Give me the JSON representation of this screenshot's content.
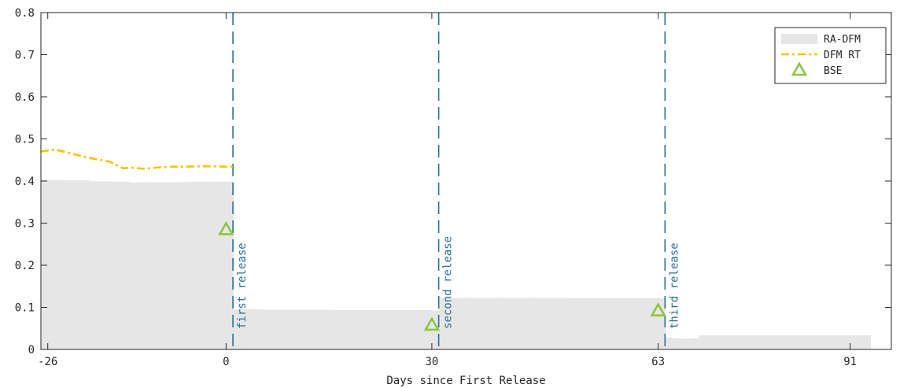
{
  "chart_data": {
    "type": "area",
    "title": "",
    "xlabel": "Days since First Release",
    "ylabel": "",
    "xlim": [
      -27,
      97
    ],
    "ylim": [
      0,
      0.8
    ],
    "xticks": [
      -26,
      0,
      30,
      63,
      91
    ],
    "xtick_labels": [
      "-26",
      "0",
      "30",
      "63",
      "91"
    ],
    "yticks": [
      0,
      0.1,
      0.2,
      0.3,
      0.4,
      0.5,
      0.6,
      0.7,
      0.8
    ],
    "ytick_labels": [
      "0",
      "0.1",
      "0.2",
      "0.3",
      "0.4",
      "0.5",
      "0.6",
      "0.7",
      "0.8"
    ],
    "grid": false,
    "legend_position": "top-right",
    "series": [
      {
        "name": "RA-DFM",
        "kind": "bars",
        "color": "#e6e6e6",
        "x": [
          -27,
          -24,
          -20,
          -17,
          -14,
          -11,
          -8,
          -5,
          -2,
          1,
          1.01,
          5,
          10,
          15,
          20,
          25,
          30,
          31,
          31.01,
          35,
          40,
          45,
          50,
          55,
          60,
          64,
          64.01,
          65,
          66,
          68,
          69,
          75,
          80,
          85,
          90,
          93
        ],
        "y": [
          0.402,
          0.401,
          0.399,
          0.398,
          0.396,
          0.396,
          0.397,
          0.398,
          0.398,
          0.398,
          0.095,
          0.094,
          0.094,
          0.093,
          0.093,
          0.093,
          0.092,
          0.092,
          0.122,
          0.122,
          0.122,
          0.122,
          0.121,
          0.121,
          0.121,
          0.121,
          0.028,
          0.026,
          0.025,
          0.026,
          0.033,
          0.033,
          0.033,
          0.033,
          0.033,
          0.033
        ]
      },
      {
        "name": "DFM RT",
        "kind": "line",
        "color": "#f5c400",
        "x": [
          -27,
          -25,
          -23,
          -21,
          -19,
          -17,
          -15,
          -14,
          -12,
          -10,
          -8,
          -6,
          -4,
          -2,
          0,
          1
        ],
        "y": [
          0.47,
          0.475,
          0.467,
          0.459,
          0.452,
          0.446,
          0.43,
          0.432,
          0.429,
          0.432,
          0.434,
          0.434,
          0.435,
          0.435,
          0.434,
          0.434
        ]
      },
      {
        "name": "BSE",
        "kind": "marker",
        "color": "#8dc63f",
        "x": [
          0,
          30,
          63
        ],
        "y": [
          0.285,
          0.058,
          0.092
        ]
      }
    ],
    "vlines": [
      {
        "x": 1,
        "label": "first release"
      },
      {
        "x": 31,
        "label": "second release"
      },
      {
        "x": 64,
        "label": "third release"
      }
    ],
    "vline_color": "#2a6f97"
  }
}
